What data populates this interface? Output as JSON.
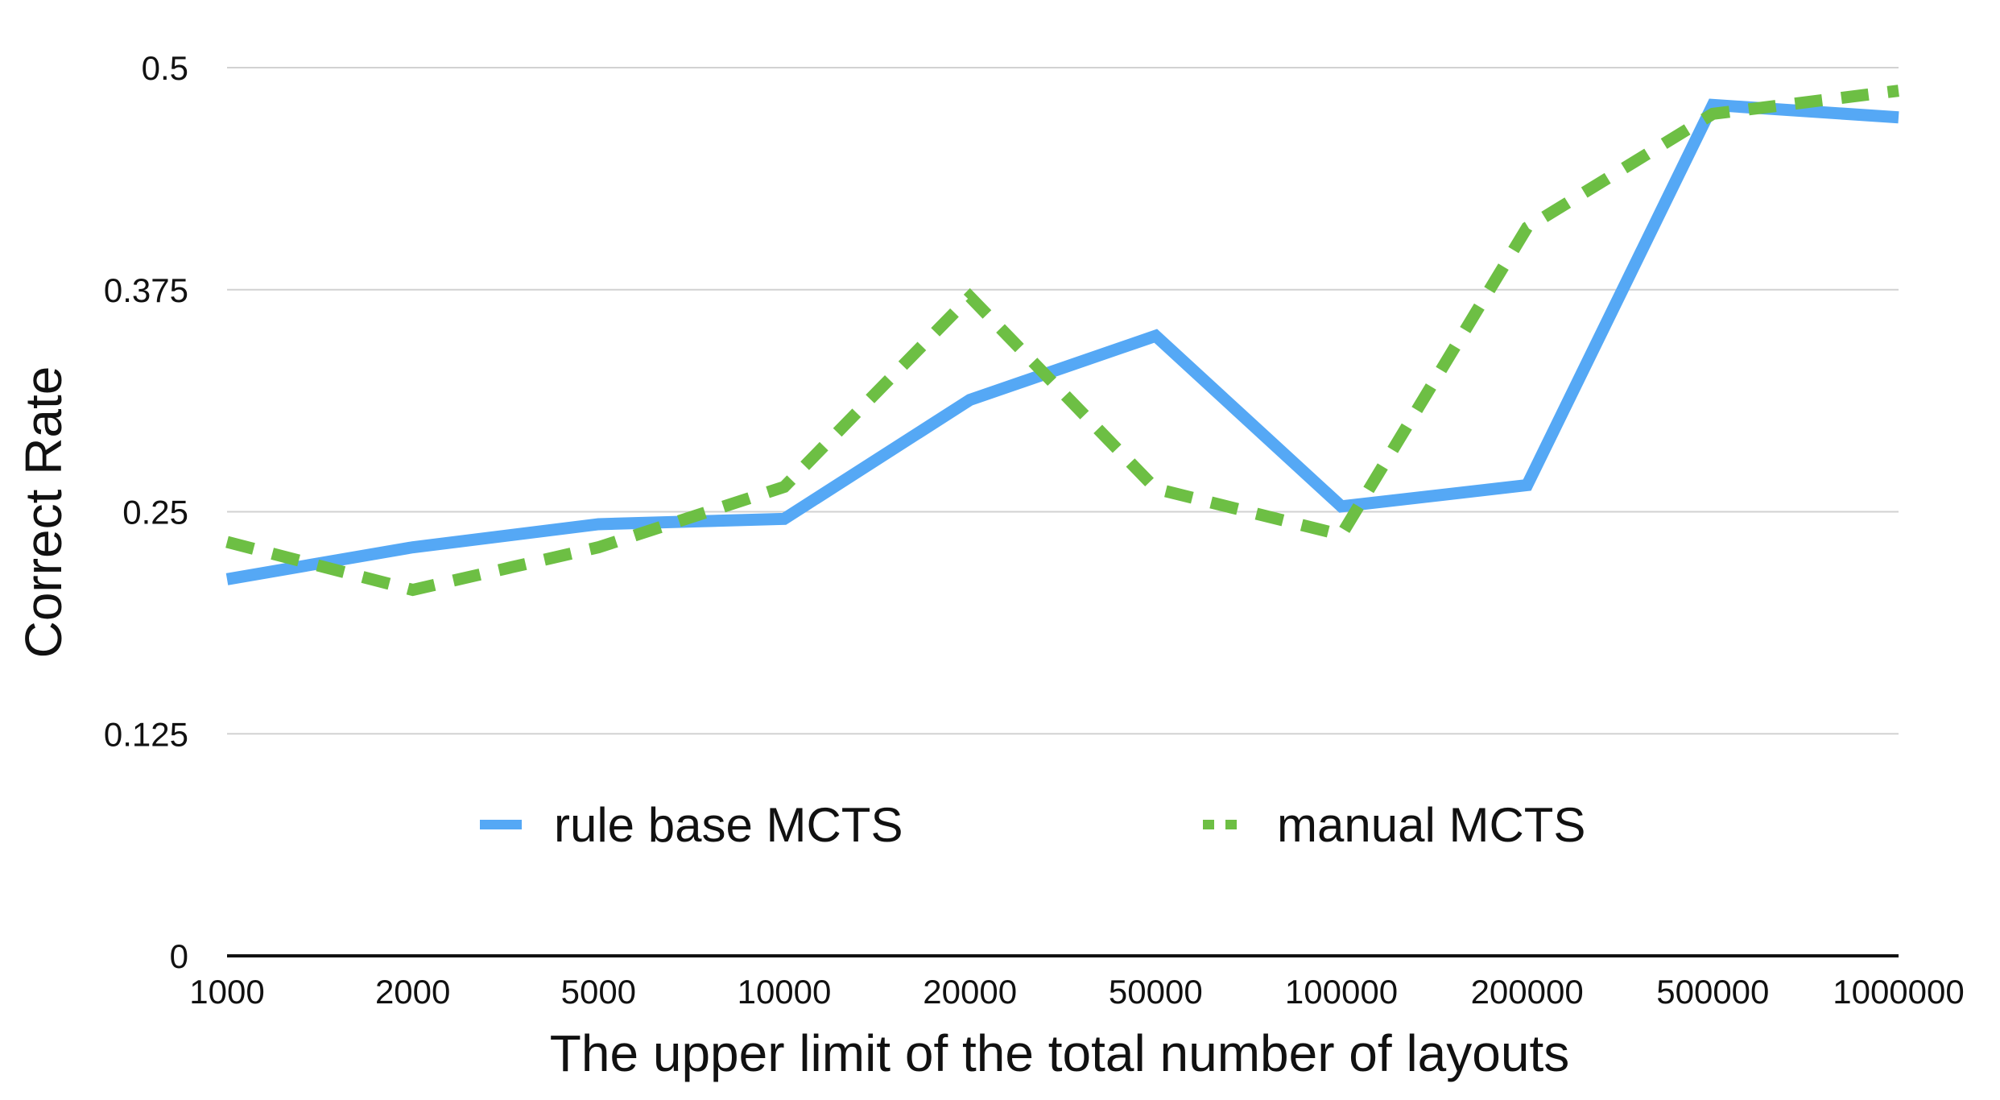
{
  "chart_data": {
    "type": "line",
    "title": "",
    "xlabel": "The upper limit of the total number of layouts",
    "ylabel": "Correct Rate",
    "categories": [
      "1000",
      "2000",
      "5000",
      "10000",
      "20000",
      "50000",
      "100000",
      "200000",
      "500000",
      "1000000"
    ],
    "yticks": [
      "0",
      "0.125",
      "0.25",
      "0.375",
      "0.5"
    ],
    "ylim": [
      0,
      0.5
    ],
    "grid": true,
    "legend_position": "bottom-inside",
    "series": [
      {
        "name": "rule base MCTS",
        "color": "#55a8f5",
        "style": "solid",
        "values": [
          0.212,
          0.23,
          0.243,
          0.246,
          0.313,
          0.349,
          0.253,
          0.265,
          0.479,
          0.472
        ]
      },
      {
        "name": "manual MCTS",
        "color": "#6dbf44",
        "style": "dashed",
        "values": [
          0.233,
          0.206,
          0.23,
          0.264,
          0.371,
          0.263,
          0.237,
          0.41,
          0.474,
          0.487
        ]
      }
    ]
  }
}
